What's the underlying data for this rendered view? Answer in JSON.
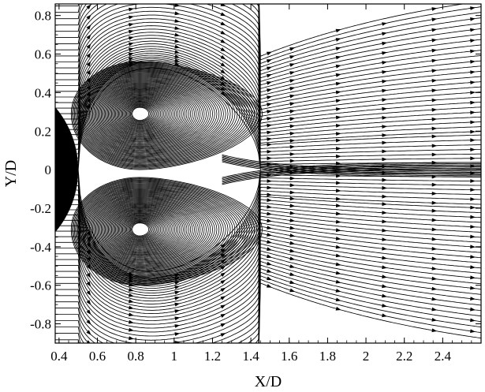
{
  "chart_data": {
    "type": "streamline",
    "title": "",
    "xlabel": "X/D",
    "ylabel": "Y/D",
    "xlim": [
      0.38,
      2.6
    ],
    "ylim": [
      -0.9,
      0.86
    ],
    "x_ticks": [
      0.4,
      0.6,
      0.8,
      1,
      1.2,
      1.4,
      1.6,
      1.8,
      2,
      2.2,
      2.4
    ],
    "x_tick_labels": [
      "0.4",
      "0.6",
      "0.8",
      "1",
      "1.2",
      "1.4",
      "1.6",
      "1.8",
      "2",
      "2.2",
      "2.4"
    ],
    "y_ticks": [
      0.8,
      0.6,
      0.4,
      0.2,
      0,
      -0.2,
      -0.4,
      -0.6,
      -0.8
    ],
    "y_tick_labels": [
      "0.8",
      "0.6",
      "0.4",
      "0.2",
      "0",
      "-0.2",
      "-0.4",
      "-0.6",
      "-0.8"
    ],
    "grid": false,
    "legend": "none",
    "body": {
      "shape": "circle",
      "center": [
        0.0,
        0.0
      ],
      "radius": 0.5,
      "fill": "#000000"
    },
    "vortices": [
      {
        "name": "upper",
        "center": [
          0.82,
          0.29
        ],
        "rotation": "clockwise"
      },
      {
        "name": "lower",
        "center": [
          0.82,
          -0.31
        ],
        "rotation": "counterclockwise"
      }
    ],
    "saddle_point": [
      1.45,
      0.0
    ],
    "recirculation_length": [
      0.5,
      1.45
    ],
    "line_color": "#000000"
  }
}
